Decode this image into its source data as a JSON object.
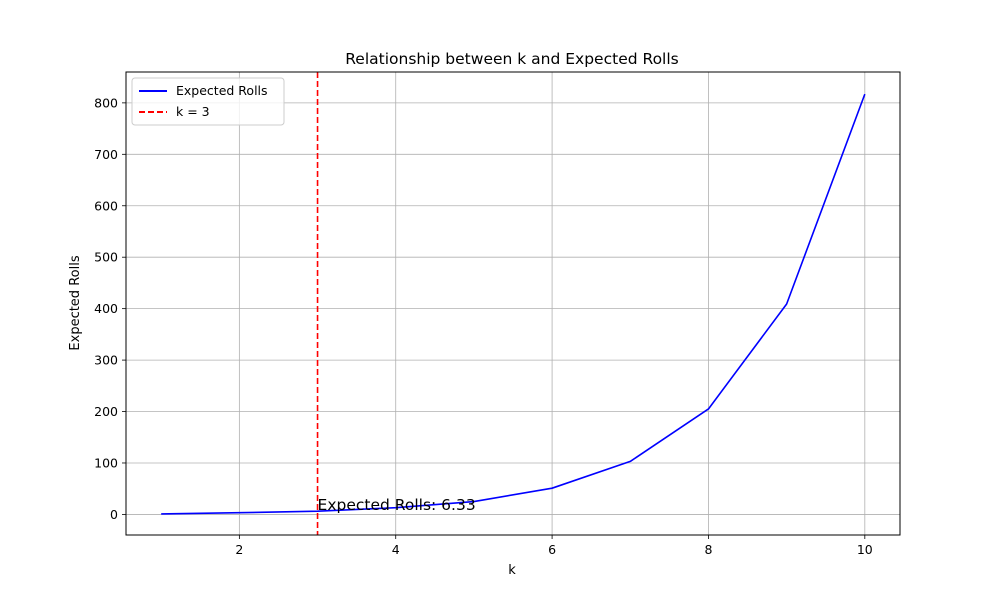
{
  "chart_data": {
    "type": "line",
    "title": "Relationship between k and Expected Rolls",
    "xlabel": "k",
    "ylabel": "Expected Rolls",
    "xlim": [
      0.55,
      10.45
    ],
    "ylim": [
      -40,
      860
    ],
    "xticks": [
      2,
      4,
      6,
      8,
      10
    ],
    "yticks": [
      0,
      100,
      200,
      300,
      400,
      500,
      600,
      700,
      800
    ],
    "grid": true,
    "legend_position": "upper-left",
    "series": [
      {
        "name": "Expected Rolls",
        "color": "#0000ff",
        "style": "solid",
        "x": [
          1,
          2,
          3,
          4,
          5,
          6,
          7,
          8,
          9,
          10
        ],
        "y": [
          1,
          3.33,
          6.33,
          13,
          25,
          51,
          103,
          205,
          409,
          817
        ]
      }
    ],
    "vline": {
      "name": "k = 3",
      "x": 3,
      "color": "#ff0000",
      "style": "dashed"
    },
    "annotation": {
      "text": "Expected Rolls: 6.33",
      "x": 3,
      "y": 6.33
    }
  }
}
